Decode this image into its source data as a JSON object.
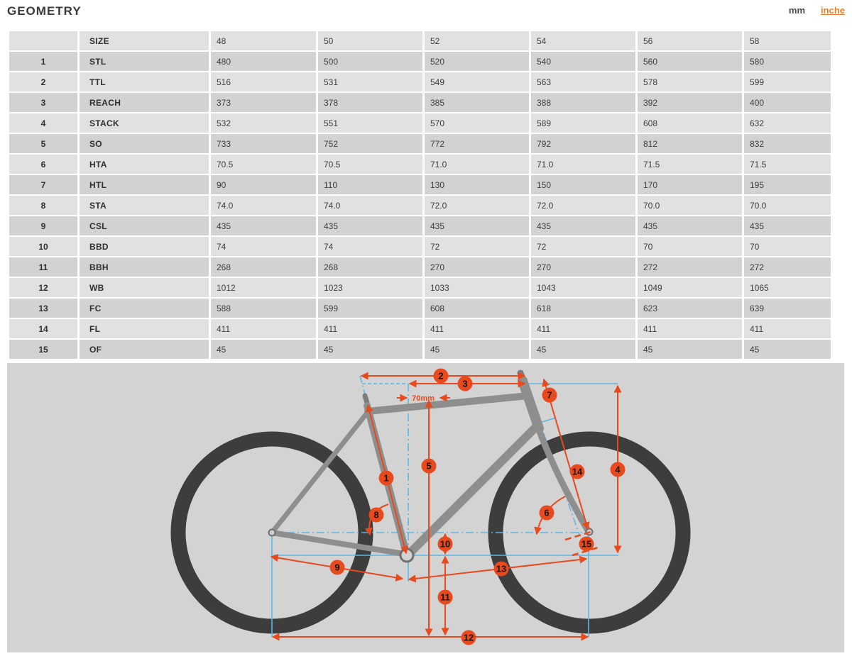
{
  "header": {
    "title": "GEOMETRY",
    "unit_mm": "mm",
    "unit_inches": "inche"
  },
  "table": {
    "corner": "",
    "size_label": "SIZE",
    "sizes": [
      "48",
      "50",
      "52",
      "54",
      "56",
      "58"
    ],
    "rows": [
      {
        "num": "1",
        "label": "STL",
        "values": [
          "480",
          "500",
          "520",
          "540",
          "560",
          "580"
        ]
      },
      {
        "num": "2",
        "label": "TTL",
        "values": [
          "516",
          "531",
          "549",
          "563",
          "578",
          "599"
        ]
      },
      {
        "num": "3",
        "label": "REACH",
        "values": [
          "373",
          "378",
          "385",
          "388",
          "392",
          "400"
        ]
      },
      {
        "num": "4",
        "label": "STACK",
        "values": [
          "532",
          "551",
          "570",
          "589",
          "608",
          "632"
        ]
      },
      {
        "num": "5",
        "label": "SO",
        "values": [
          "733",
          "752",
          "772",
          "792",
          "812",
          "832"
        ]
      },
      {
        "num": "6",
        "label": "HTA",
        "values": [
          "70.5",
          "70.5",
          "71.0",
          "71.0",
          "71.5",
          "71.5"
        ]
      },
      {
        "num": "7",
        "label": "HTL",
        "values": [
          "90",
          "110",
          "130",
          "150",
          "170",
          "195"
        ]
      },
      {
        "num": "8",
        "label": "STA",
        "values": [
          "74.0",
          "74.0",
          "72.0",
          "72.0",
          "70.0",
          "70.0"
        ]
      },
      {
        "num": "9",
        "label": "CSL",
        "values": [
          "435",
          "435",
          "435",
          "435",
          "435",
          "435"
        ]
      },
      {
        "num": "10",
        "label": "BBD",
        "values": [
          "74",
          "74",
          "72",
          "72",
          "70",
          "70"
        ]
      },
      {
        "num": "11",
        "label": "BBH",
        "values": [
          "268",
          "268",
          "270",
          "270",
          "272",
          "272"
        ]
      },
      {
        "num": "12",
        "label": "WB",
        "values": [
          "1012",
          "1023",
          "1033",
          "1043",
          "1049",
          "1065"
        ]
      },
      {
        "num": "13",
        "label": "FC",
        "values": [
          "588",
          "599",
          "608",
          "618",
          "623",
          "639"
        ]
      },
      {
        "num": "14",
        "label": "FL",
        "values": [
          "411",
          "411",
          "411",
          "411",
          "411",
          "411"
        ]
      },
      {
        "num": "15",
        "label": "OF",
        "values": [
          "45",
          "45",
          "45",
          "45",
          "45",
          "45"
        ]
      }
    ]
  },
  "diagram": {
    "annotation_70mm": "70mm",
    "markers": [
      "1",
      "2",
      "3",
      "4",
      "5",
      "6",
      "7",
      "8",
      "9",
      "10",
      "11",
      "12",
      "13",
      "14",
      "15"
    ]
  },
  "colors": {
    "accent_orange": "#e8491d",
    "reference_blue": "#5fb6e2",
    "link_orange": "#e87f2f"
  }
}
